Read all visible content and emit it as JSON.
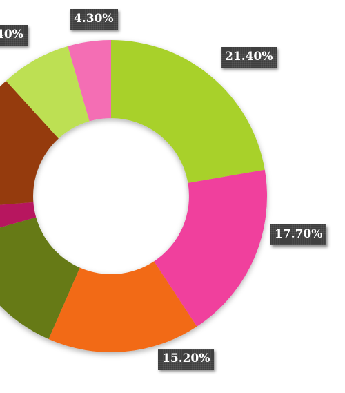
{
  "chart_data": {
    "type": "pie",
    "variant": "donut",
    "slices": [
      {
        "value": 21.4,
        "label": "21.40%",
        "color": "#a8d12a"
      },
      {
        "value": 17.7,
        "label": "17.70%",
        "color": "#f0419d"
      },
      {
        "value": 15.2,
        "label": "15.20%",
        "color": "#f26a17"
      },
      {
        "value": 13.5,
        "label": "",
        "color": "#667a19"
      },
      {
        "value": 3.0,
        "label": "",
        "color": "#b7125e"
      },
      {
        "value": 13.9,
        "label": "",
        "color": "#953a0c"
      },
      {
        "value": 7.0,
        "label": "",
        "color": "#bde052"
      },
      {
        "value": 4.3,
        "label": "4.30%",
        "color": "#f46eb4"
      }
    ],
    "partial_labels": [
      "40%"
    ],
    "legend": "none"
  }
}
